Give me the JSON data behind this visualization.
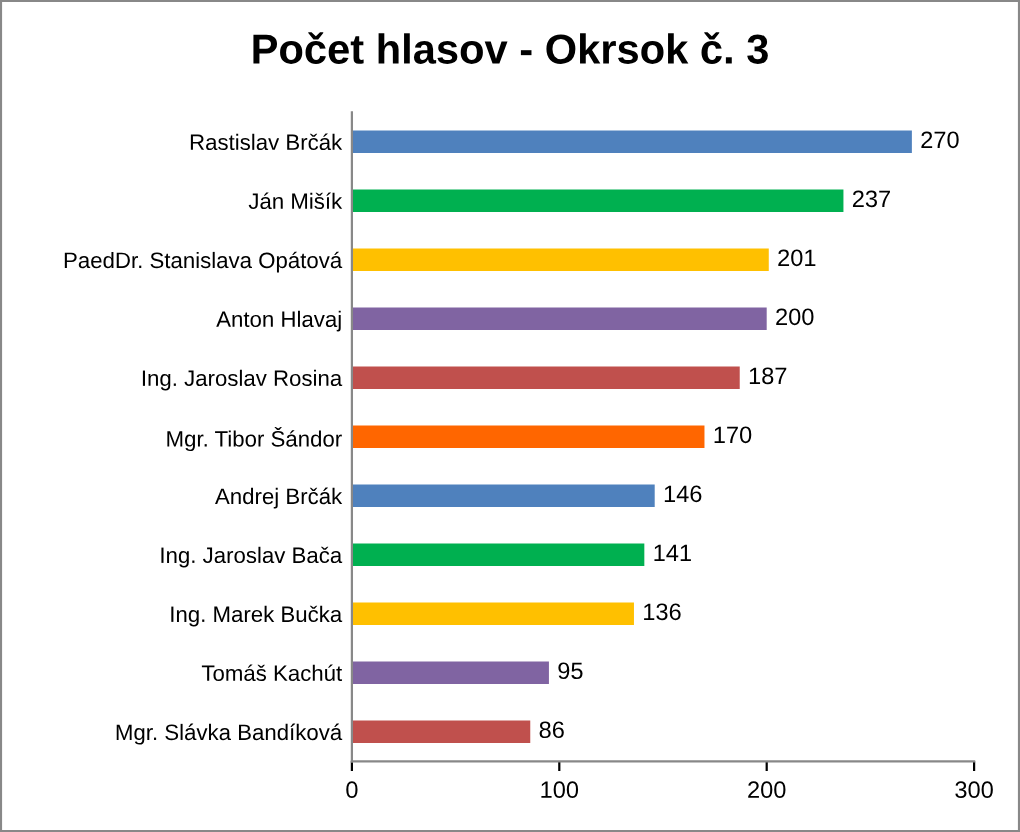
{
  "chart_data": {
    "type": "bar",
    "orientation": "horizontal",
    "title": "Počet hlasov - Okrsok č. 3",
    "categories": [
      "Rastislav Brčák",
      "Ján Mišík",
      "PaedDr. Stanislava Opátová",
      "Anton Hlavaj",
      "Ing. Jaroslav Rosina",
      "Mgr. Tibor Šándor",
      "Andrej Brčák",
      "Ing. Jaroslav Bača",
      "Ing. Marek Bučka",
      "Tomáš Kachút",
      "Mgr. Slávka Bandíková"
    ],
    "values": [
      270,
      237,
      201,
      200,
      187,
      170,
      146,
      141,
      136,
      95,
      86
    ],
    "colors": [
      "#4f81bd",
      "#00b050",
      "#ffc000",
      "#8064a2",
      "#c0504d",
      "#ff6600",
      "#4f81bd",
      "#00b050",
      "#ffc000",
      "#8064a2",
      "#c0504d"
    ],
    "xlim": [
      0,
      300
    ],
    "xticks": [
      0,
      100,
      200,
      300
    ],
    "data_labels": true,
    "grid": false
  }
}
